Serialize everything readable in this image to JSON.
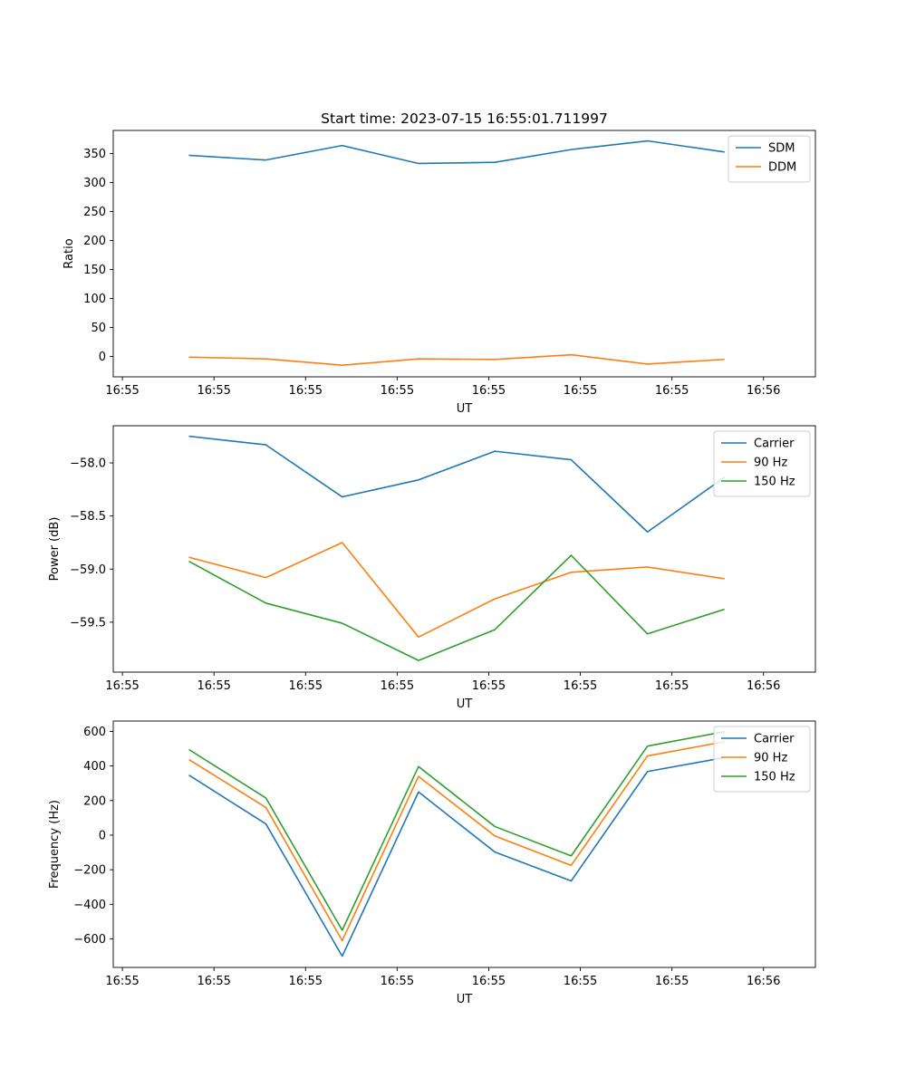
{
  "figure_title": "Start time: 2023-07-15 16:55:01.711997",
  "chart_data": [
    {
      "type": "line",
      "title": "Start time: 2023-07-15 16:55:01.711997",
      "xlabel": "UT",
      "ylabel": "Ratio",
      "x_tick_labels": [
        "16:55",
        "16:55",
        "16:55",
        "16:55",
        "16:55",
        "16:55",
        "16:55",
        "16:56"
      ],
      "x": [
        1,
        2,
        3,
        4,
        5,
        6,
        7,
        8
      ],
      "xlim": [
        0,
        9.2
      ],
      "ylim": [
        -35,
        390
      ],
      "y_ticks": [
        0,
        50,
        100,
        150,
        200,
        250,
        300,
        350
      ],
      "y_tick_labels": [
        "0",
        "50",
        "100",
        "150",
        "200",
        "250",
        "300",
        "350"
      ],
      "legend": "top-right",
      "series": [
        {
          "name": "SDM",
          "color": "#1f77b4",
          "values": [
            347,
            339,
            364,
            333,
            335,
            357,
            372,
            353
          ]
        },
        {
          "name": "DDM",
          "color": "#ff7f0e",
          "values": [
            -1,
            -4,
            -15,
            -4,
            -5,
            3,
            -13,
            -5
          ]
        }
      ]
    },
    {
      "type": "line",
      "title": "",
      "xlabel": "UT",
      "ylabel": "Power (dB)",
      "x_tick_labels": [
        "16:55",
        "16:55",
        "16:55",
        "16:55",
        "16:55",
        "16:55",
        "16:55",
        "16:56"
      ],
      "x": [
        1,
        2,
        3,
        4,
        5,
        6,
        7,
        8
      ],
      "xlim": [
        0,
        9.2
      ],
      "ylim": [
        -59.97,
        -57.65
      ],
      "y_ticks": [
        -59.5,
        -59.0,
        -58.5,
        -58.0
      ],
      "y_tick_labels": [
        "−59.5",
        "−59.0",
        "−58.5",
        "−58.0"
      ],
      "legend": "top-right",
      "series": [
        {
          "name": "Carrier",
          "color": "#1f77b4",
          "values": [
            -57.75,
            -57.83,
            -58.32,
            -58.16,
            -57.89,
            -57.97,
            -58.65,
            -58.14
          ]
        },
        {
          "name": "90 Hz",
          "color": "#ff7f0e",
          "values": [
            -58.89,
            -59.08,
            -58.75,
            -59.64,
            -59.28,
            -59.03,
            -58.98,
            -59.09
          ]
        },
        {
          "name": "150 Hz",
          "color": "#2ca02c",
          "values": [
            -58.93,
            -59.32,
            -59.51,
            -59.86,
            -59.57,
            -58.87,
            -59.61,
            -59.38
          ]
        }
      ]
    },
    {
      "type": "line",
      "title": "",
      "xlabel": "UT",
      "ylabel": "Frequency (Hz)",
      "x_tick_labels": [
        "16:55",
        "16:55",
        "16:55",
        "16:55",
        "16:55",
        "16:55",
        "16:55",
        "16:56"
      ],
      "x": [
        1,
        2,
        3,
        4,
        5,
        6,
        7,
        8
      ],
      "xlim": [
        0,
        9.2
      ],
      "ylim": [
        -765,
        660
      ],
      "y_ticks": [
        -600,
        -400,
        -200,
        0,
        200,
        400,
        600
      ],
      "y_tick_labels": [
        "−600",
        "−400",
        "−200",
        "0",
        "200",
        "400",
        "600"
      ],
      "legend": "top-right",
      "series": [
        {
          "name": "Carrier",
          "color": "#1f77b4",
          "values": [
            345,
            65,
            -700,
            250,
            -98,
            -265,
            368,
            448
          ]
        },
        {
          "name": "90 Hz",
          "color": "#ff7f0e",
          "values": [
            435,
            160,
            -610,
            340,
            -5,
            -175,
            458,
            540
          ]
        },
        {
          "name": "150 Hz",
          "color": "#2ca02c",
          "values": [
            493,
            215,
            -550,
            397,
            50,
            -120,
            515,
            598
          ]
        }
      ]
    }
  ]
}
